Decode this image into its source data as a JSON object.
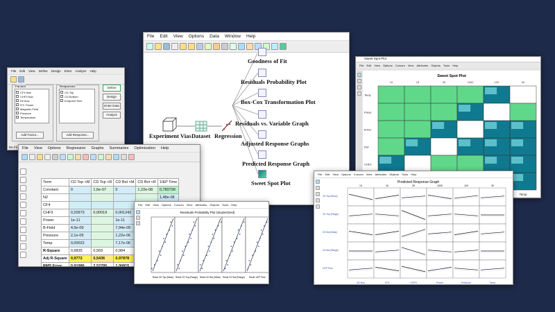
{
  "factors_window": {
    "menu": [
      "File",
      "Edit",
      "View",
      "Define",
      "Design",
      "Enter",
      "Analyze",
      "Help"
    ],
    "factors_title": "Factors",
    "responses_title": "Responses",
    "factors": [
      "CF4 flow",
      "CHF3 flow",
      "N2 flow",
      "R.F. Power",
      "Magnetic Field",
      "Pressure",
      "Temperature"
    ],
    "responses": [
      "CD Top",
      "CD Bottom",
      "Endpoint Time"
    ],
    "buttons": [
      "Define",
      "Design",
      "Enter Data",
      "Analyze"
    ],
    "add_factor": "Add Factor...",
    "add_response": "Add Response...",
    "edge_label": "Re Fil"
  },
  "flow_window": {
    "menu": [
      "File",
      "Edit",
      "View",
      "Options",
      "Data",
      "Window",
      "Help"
    ],
    "source_label": "Experiment Vias",
    "dataset_label": "Dataset",
    "regression_label": "Regression",
    "outputs": [
      "Goodness of Fit",
      "Residuals Probability Plot",
      "Box-Cox Transformation Plot",
      "Residuals vs. Variable Graph",
      "Adjusted Response Graphs",
      "Predicted Response Graph",
      "Sweet Spot Plot"
    ]
  },
  "sweet_window": {
    "title": "Sweet Spot Plot",
    "menu": [
      "File",
      "Edit",
      "View",
      "Options",
      "Cursors",
      "View",
      "Attributes",
      "Objects",
      "Tools",
      "Help"
    ],
    "plot_title": "Sweet Spot Plot",
    "row_labels": [
      "Temp",
      "Press",
      "B-Fld",
      "Pwr",
      "CHF3",
      "CF4"
    ],
    "col_labels": [
      "N2",
      "CF4",
      "CHF3",
      "Power",
      "Pressure",
      "Temp"
    ],
    "top_ticks": [
      "10",
      "15",
      "25",
      "1000",
      "120",
      "30"
    ]
  },
  "reg_window": {
    "menu": [
      "File",
      "View",
      "Options",
      "Regression",
      "Graphs",
      "Summaries",
      "Optimization",
      "Help"
    ],
    "headers": [
      "Term",
      "CD Top <M",
      "CD Top <R",
      "CD Bot <M",
      "CD Bot <R",
      "1/EP Time"
    ],
    "rows": [
      {
        "label": "Constant",
        "cells": [
          "0",
          "1,6e-07",
          "0",
          "1,22e-08",
          "0,780799"
        ]
      },
      {
        "label": "N2",
        "cells": [
          "",
          "",
          "",
          "",
          "1,48e-08"
        ]
      },
      {
        "label": "CF4",
        "cells": [
          "",
          "",
          "",
          "",
          ""
        ]
      },
      {
        "label": "CHF3",
        "cells": [
          "0,20973",
          "0,00019",
          "0,001242",
          "1,28e-",
          "7,9e-10"
        ]
      },
      {
        "label": "Power",
        "cells": [
          "1e-11",
          "",
          "1e-11",
          "",
          ""
        ]
      },
      {
        "label": "B-Field",
        "cells": [
          "4,9e-09",
          "",
          "7,94e-09",
          "",
          ""
        ]
      },
      {
        "label": "Pressure",
        "cells": [
          "2,1e-05",
          "",
          "1,22e-06",
          "",
          ""
        ]
      },
      {
        "label": "Temp",
        "cells": [
          "0,00022",
          "",
          "7,17e-06",
          "",
          ""
        ]
      },
      {
        "label": "R-Square",
        "cells": [
          "0,9835",
          "0,569",
          "0,984",
          "0,68",
          ""
        ]
      },
      {
        "label": "Adj R-Square",
        "cells": [
          "0,9772",
          "0,5436",
          "0,97878",
          "0,66",
          ""
        ]
      },
      {
        "label": "RMS Error",
        "cells": [
          "0,91986",
          "2,52795",
          "1,00815",
          "2,42",
          ""
        ]
      },
      {
        "label": "Pure Error",
        "cells": [
          "1,50049",
          "3,9128",
          "1,375553",
          "4,24",
          ""
        ]
      },
      {
        "label": "Residual df",
        "cells": [
          "13",
          "17",
          "13",
          "17",
          ""
        ]
      }
    ]
  },
  "resid_window": {
    "menu": [
      "File",
      "Edit",
      "View",
      "Options",
      "Cursors",
      "View",
      "Attributes",
      "Objects",
      "Tools",
      "Help"
    ],
    "plot_title": "Residuals Probability Plot (Studentized)",
    "panel_labels": [
      "Resid CD Top (Mean)",
      "Resid CD Top (Range)",
      "Resid CD Bot (Mean)",
      "Resid CD Bot (Range)",
      "Resid 1/EP Time"
    ]
  },
  "pred_window": {
    "menu": [
      "File",
      "Edit",
      "View",
      "Options",
      "Cursors",
      "View",
      "Attributes",
      "Objects",
      "Tools",
      "Help"
    ],
    "plot_title": "Predicted Response Graph",
    "top_ticks": [
      "10",
      "15",
      "25",
      "1000",
      "120",
      "30"
    ],
    "bottom_labels": [
      "N2 flow",
      "CF4",
      "CHF3",
      "Power",
      "Pressure",
      "Temp"
    ],
    "row_labels": [
      "CD Top (Mean)",
      "CD Top (Range)",
      "CD Bot (Mean)",
      "CD Bot (Range)",
      "1/EP Time"
    ]
  },
  "colors": {
    "background": "#1e2a4a",
    "green": "#5fd88a",
    "teal": "#0f7a8f"
  }
}
